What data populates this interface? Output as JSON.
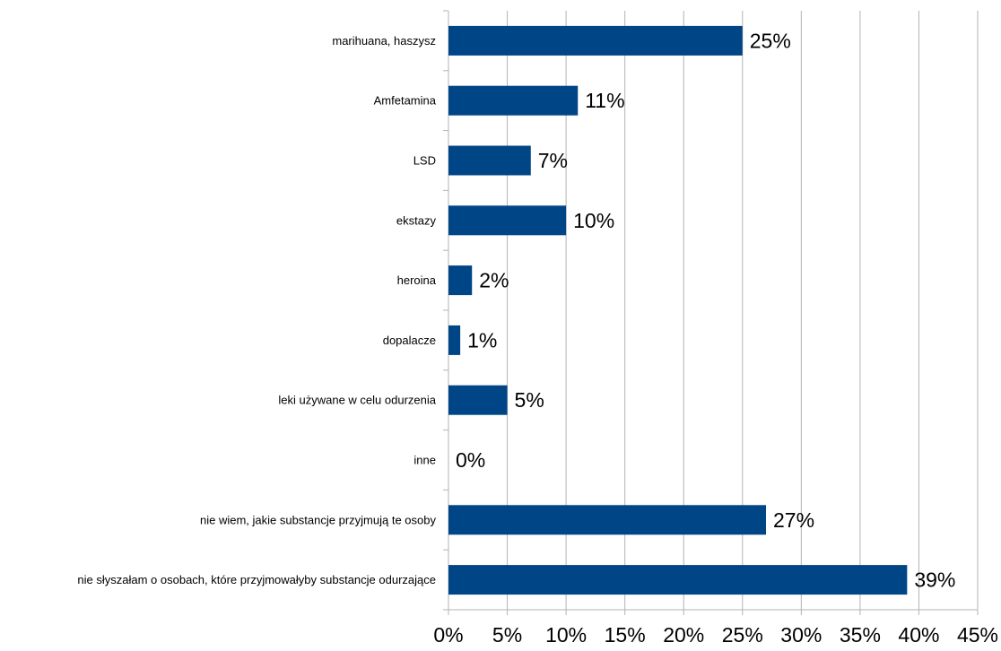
{
  "chart_data": {
    "type": "bar",
    "orientation": "horizontal",
    "categories": [
      "marihuana, haszysz",
      "Amfetamina",
      "LSD",
      "ekstazy",
      "heroina",
      "dopalacze",
      "leki używane w celu odurzenia",
      "inne",
      "nie wiem, jakie substancje przyjmują te osoby",
      "nie słyszałam o osobach, które przyjmowałyby substancje odurzające"
    ],
    "values": [
      25,
      11,
      7,
      10,
      2,
      1,
      5,
      0,
      27,
      39
    ],
    "data_labels": [
      "25%",
      "11%",
      "7%",
      "10%",
      "2%",
      "1%",
      "5%",
      "0%",
      "27%",
      "39%"
    ],
    "xlim": [
      0,
      45
    ],
    "x_ticks": [
      0,
      5,
      10,
      15,
      20,
      25,
      30,
      35,
      40,
      45
    ],
    "x_tick_labels": [
      "0%",
      "5%",
      "10%",
      "15%",
      "20%",
      "25%",
      "30%",
      "35%",
      "40%",
      "45%"
    ],
    "title": "",
    "xlabel": "",
    "ylabel": "",
    "grid": true,
    "legend": "none",
    "bar_color": "#004586"
  }
}
